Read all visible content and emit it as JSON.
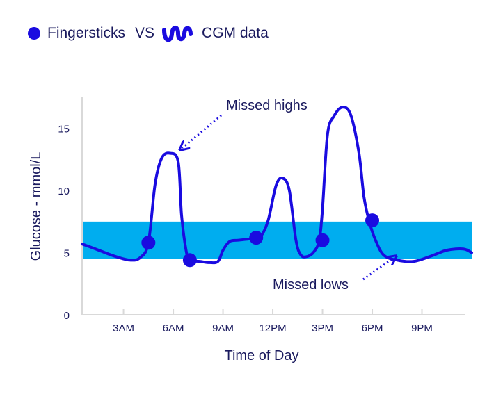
{
  "legend": {
    "fingersticks_label": "Fingersticks",
    "vs_label": "VS",
    "cgm_label": "CGM data"
  },
  "chart_data": {
    "type": "line",
    "xlabel": "Time of Day",
    "ylabel": "Glucose - mmol/L",
    "x_ticks": [
      {
        "value": 3,
        "label": "3AM"
      },
      {
        "value": 6,
        "label": "6AM"
      },
      {
        "value": 9,
        "label": "9AM"
      },
      {
        "value": 12,
        "label": "12PM"
      },
      {
        "value": 15,
        "label": "3PM"
      },
      {
        "value": 18,
        "label": "6PM"
      },
      {
        "value": 21,
        "label": "9PM"
      }
    ],
    "y_ticks": [
      0,
      5,
      10,
      15
    ],
    "xlim": [
      0.5,
      24
    ],
    "ylim": [
      0,
      17.5
    ],
    "target_range": [
      4.5,
      7.5
    ],
    "cgm_series": {
      "name": "CGM data",
      "x": [
        0.5,
        1.5,
        2.5,
        3.4,
        4.0,
        4.5,
        4.9,
        5.3,
        5.8,
        6.3,
        6.5,
        6.8,
        7.0,
        7.6,
        8.2,
        8.7,
        9.0,
        9.4,
        9.9,
        10.6,
        11.2,
        11.7,
        12.2,
        12.6,
        13.0,
        13.4,
        13.7,
        14.1,
        14.5,
        14.8,
        15.0,
        15.3,
        15.7,
        16.2,
        16.7,
        17.2,
        17.5,
        17.8,
        18.2,
        18.7,
        19.5,
        20.5,
        21.5,
        22.5,
        23.5,
        24.0
      ],
      "y": [
        5.7,
        5.2,
        4.7,
        4.4,
        4.6,
        5.8,
        10.5,
        12.6,
        13.0,
        12.3,
        8.0,
        5.0,
        4.4,
        4.3,
        4.2,
        4.3,
        5.2,
        5.9,
        6.0,
        6.1,
        6.2,
        7.5,
        10.4,
        11.0,
        10.0,
        6.0,
        4.8,
        4.7,
        5.1,
        6.0,
        8.5,
        14.5,
        16.0,
        16.7,
        16.1,
        13.0,
        9.5,
        7.6,
        6.0,
        4.8,
        4.4,
        4.3,
        4.7,
        5.2,
        5.3,
        5.0
      ]
    },
    "fingersticks": {
      "name": "Fingersticks",
      "x": [
        4.5,
        7.0,
        11.0,
        15.0,
        18.0
      ],
      "y": [
        5.8,
        4.4,
        6.2,
        6.0,
        7.6
      ]
    },
    "annotations": [
      {
        "text": "Missed highs",
        "target_x": 6.0,
        "target_y": 13.0
      },
      {
        "text": "Missed lows",
        "target_x": 19.5,
        "target_y": 4.2
      }
    ],
    "colors": {
      "line": "#1a0be0",
      "band": "#00adef",
      "axis": "#d9d9d9",
      "text": "#1a1a5e"
    }
  }
}
